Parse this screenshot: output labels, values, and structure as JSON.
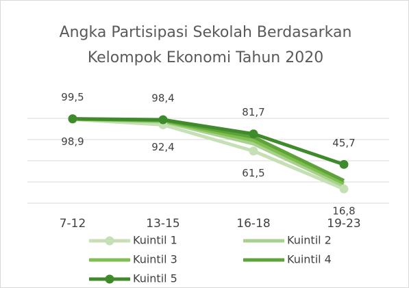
{
  "chart_data": {
    "type": "line",
    "title": [
      "Angka Partisipasi Sekolah Berdasarkan",
      "Kelompok Ekonomi Tahun 2020"
    ],
    "categories": [
      "7-12",
      "13-15",
      "16-18",
      "19-23"
    ],
    "ylim": [
      0,
      100
    ],
    "yticks": [
      0,
      25,
      50,
      75,
      100
    ],
    "grid": true,
    "series": [
      {
        "name": "Kuintil 1",
        "color": "#c5e0b4",
        "marker": true,
        "values": [
          98.9,
          92.4,
          61.5,
          16.8
        ],
        "value_labels": [
          "98,9",
          "92,4",
          "61,5",
          "16,8"
        ]
      },
      {
        "name": "Kuintil 2",
        "color": "#a9d18e",
        "marker": false,
        "values": [
          99.1,
          96.0,
          70.0,
          20.2
        ]
      },
      {
        "name": "Kuintil 3",
        "color": "#7fbf4f",
        "marker": false,
        "values": [
          99.2,
          97.0,
          74.0,
          23.4
        ]
      },
      {
        "name": "Kuintil 4",
        "color": "#5ea33a",
        "marker": false,
        "values": [
          99.4,
          97.8,
          78.0,
          26.6
        ]
      },
      {
        "name": "Kuintil 5",
        "color": "#3f8a2a",
        "marker": true,
        "values": [
          99.5,
          98.4,
          81.7,
          45.7
        ],
        "value_labels": [
          "99,5",
          "98,4",
          "81,7",
          "45,7"
        ]
      }
    ]
  }
}
